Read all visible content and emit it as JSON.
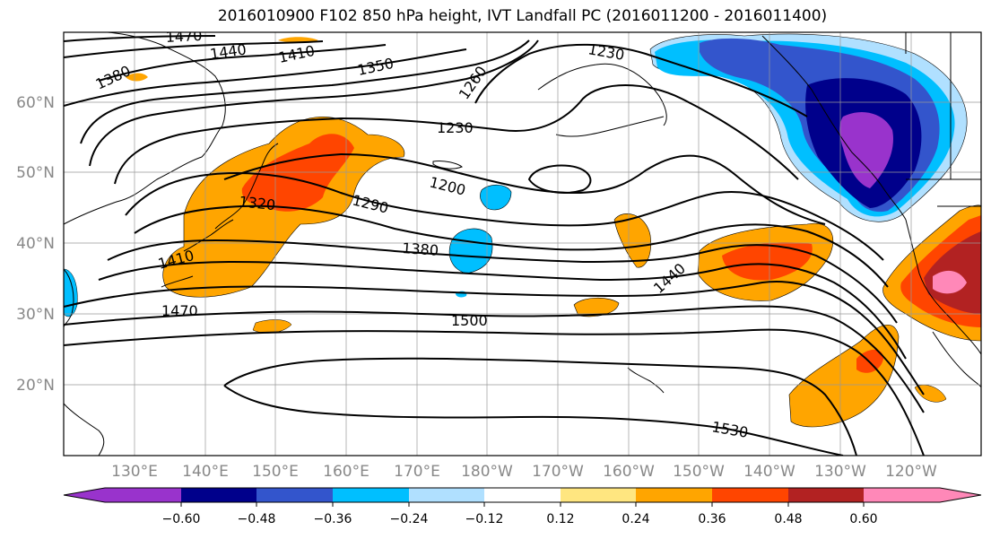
{
  "title": "2016010900 F102 850 hPa height, IVT Landfall PC (2016011200 - 2016011400)",
  "lat_labels": [
    "60°N",
    "50°N",
    "40°N",
    "30°N",
    "20°N"
  ],
  "lon_labels": [
    "130°E",
    "140°E",
    "150°E",
    "160°E",
    "170°E",
    "180°W",
    "170°W",
    "160°W",
    "150°W",
    "140°W",
    "130°W",
    "120°W"
  ],
  "contour_labels": [
    "1470",
    "1440",
    "1410",
    "1350",
    "1380",
    "1260",
    "1230",
    "1230",
    "1200",
    "1290",
    "1320",
    "1380",
    "1410",
    "1470",
    "1440",
    "1500",
    "1530"
  ],
  "colorbar": {
    "ticks": [
      "−0.60",
      "−0.48",
      "−0.36",
      "−0.24",
      "−0.12",
      "0.12",
      "0.24",
      "0.36",
      "0.48",
      "0.60"
    ],
    "colors": [
      "#9933cc",
      "#00008b",
      "#3355cc",
      "#00bfff",
      "#b0e0ff",
      "#ffffff",
      "#ffe680",
      "#ffa500",
      "#ff4500",
      "#b22222",
      "#ff88b8"
    ]
  },
  "colors": {
    "land_line": "#000000",
    "grid": "#999999",
    "tick_label": "#888888"
  }
}
